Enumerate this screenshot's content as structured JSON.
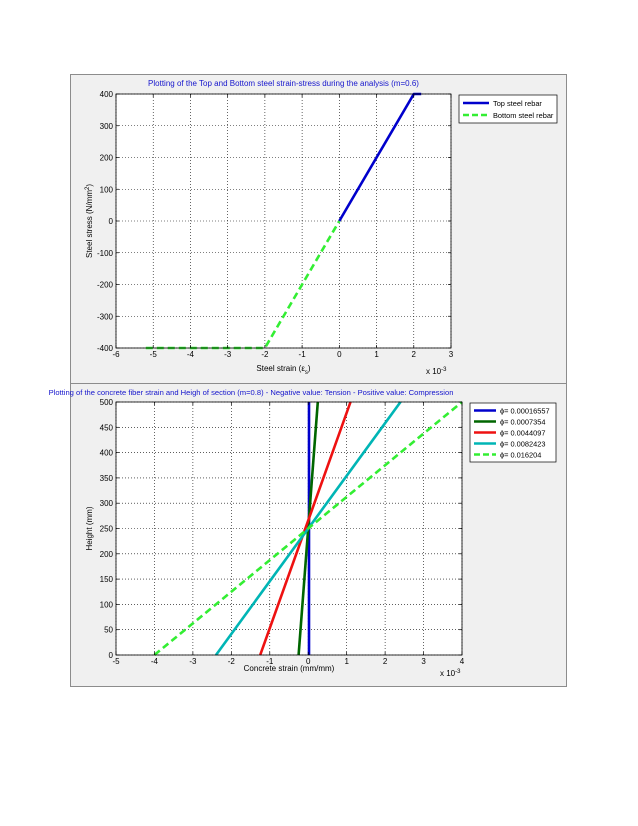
{
  "chart_data": [
    {
      "type": "line",
      "title": "Plotting of the Top  and Bottom steel strain-stress during the analysis (m=0.6)",
      "xlabel": "Steel strain (ε",
      "xlabel_sub": "s",
      "xlabel_end": ")",
      "ylabel": "Steel stress (N/mm",
      "ylabel_sup": "2",
      "ylabel_end": ")",
      "xlim": [
        -6,
        3
      ],
      "ylim": [
        -400,
        400
      ],
      "xticks": [
        -6,
        -5,
        -4,
        -3,
        -2,
        -1,
        0,
        1,
        2,
        3
      ],
      "yticks": [
        -400,
        -300,
        -200,
        -100,
        0,
        100,
        200,
        300,
        400
      ],
      "xtick_labels": [
        "-6",
        "-5",
        "-4",
        "-3",
        "-2",
        "-1",
        "0",
        "1",
        "2",
        "3"
      ],
      "ytick_labels": [
        "-400",
        "-300",
        "-200",
        "-100",
        "0",
        "100",
        "200",
        "300",
        "400"
      ],
      "x_multiplier": "x 10",
      "x_multiplier_exp": "-3",
      "grid": true,
      "legend_position": "top-right",
      "series": [
        {
          "name": "Top steel rebar",
          "color": "#0000cc",
          "dash": "solid",
          "points": [
            [
              0,
              0
            ],
            [
              2,
              400
            ],
            [
              2.2,
              400
            ]
          ]
        },
        {
          "name": "Bottom steel rebar",
          "color": "#33ee33",
          "dash": "dashed",
          "points": [
            [
              -5.2,
              -400
            ],
            [
              -2,
              -400
            ],
            [
              0,
              0
            ]
          ]
        }
      ]
    },
    {
      "type": "line",
      "title": "Plotting of the concrete fiber strain and Heigh of section (m=0.8) - Negative value: Tension - Positive value: Compression",
      "xlabel": "Concrete strain (mm/mm)",
      "ylabel": "Height (mm)",
      "xlim": [
        -5,
        4
      ],
      "ylim": [
        0,
        500
      ],
      "xticks": [
        -5,
        -4,
        -3,
        -2,
        -1,
        0,
        1,
        2,
        3,
        4
      ],
      "yticks": [
        0,
        50,
        100,
        150,
        200,
        250,
        300,
        350,
        400,
        450,
        500
      ],
      "xtick_labels": [
        "-5",
        "-4",
        "-3",
        "-2",
        "-1",
        "0",
        "1",
        "2",
        "3",
        "4"
      ],
      "ytick_labels": [
        "0",
        "50",
        "100",
        "150",
        "200",
        "250",
        "300",
        "350",
        "400",
        "450",
        "500"
      ],
      "x_multiplier": "x 10",
      "x_multiplier_exp": "-3",
      "grid": true,
      "legend_position": "top-right",
      "series": [
        {
          "name": "ϕ= 0.00016557",
          "color": "#0000cc",
          "dash": "solid",
          "points": [
            [
              0.02,
              0
            ],
            [
              0.02,
              500
            ]
          ]
        },
        {
          "name": "ϕ= 0.0007354",
          "color": "#006600",
          "dash": "solid",
          "points": [
            [
              -0.25,
              0
            ],
            [
              0.25,
              500
            ]
          ]
        },
        {
          "name": "ϕ= 0.0044097",
          "color": "#ee1111",
          "dash": "solid",
          "points": [
            [
              -1.25,
              0
            ],
            [
              1.1,
              500
            ]
          ]
        },
        {
          "name": "ϕ= 0.0082423",
          "color": "#00b5b5",
          "dash": "solid",
          "points": [
            [
              -2.4,
              0
            ],
            [
              2.4,
              500
            ]
          ]
        },
        {
          "name": "ϕ= 0.016204",
          "color": "#33ee33",
          "dash": "dashed",
          "points": [
            [
              -4.0,
              0
            ],
            [
              4.0,
              500
            ]
          ]
        }
      ]
    }
  ]
}
